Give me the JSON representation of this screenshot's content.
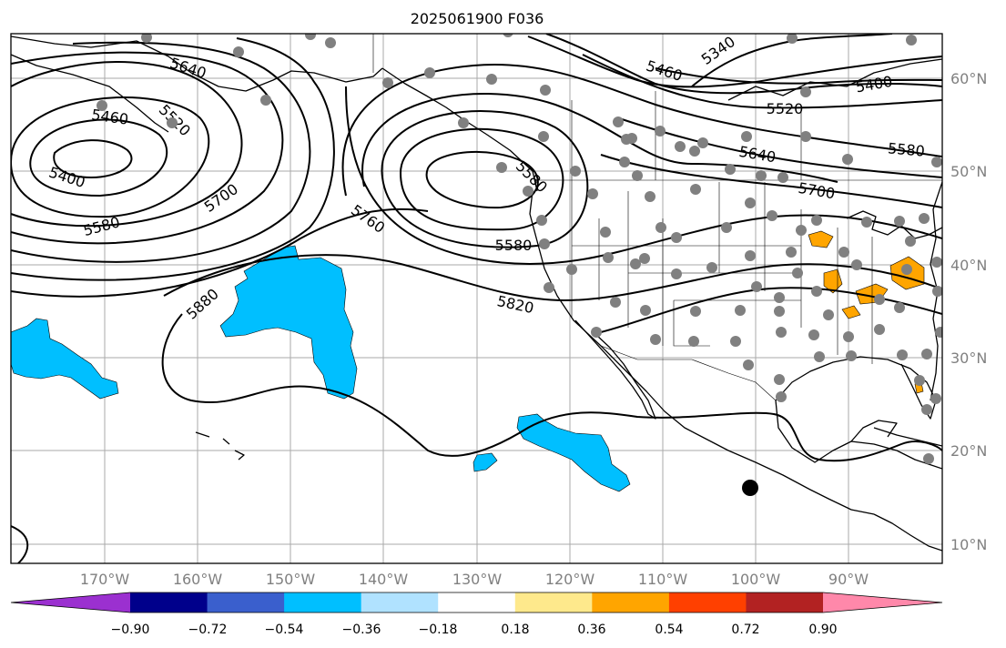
{
  "title": "2025061900 F036",
  "lat_labels": [
    "60°N",
    "50°N",
    "40°N",
    "30°N",
    "20°N",
    "10°N"
  ],
  "lon_labels": [
    "170°W",
    "160°W",
    "150°W",
    "140°W",
    "130°W",
    "120°W",
    "110°W",
    "100°W",
    "90°W"
  ],
  "contour_labels": [
    "5640",
    "5460",
    "5520",
    "5400",
    "5580",
    "5700",
    "5880",
    "5760",
    "5580",
    "5820",
    "5460",
    "5340",
    "5400",
    "5520",
    "5580",
    "5640",
    "5700",
    "5580"
  ],
  "colorbar": {
    "ticks": [
      "−0.90",
      "−0.72",
      "−0.54",
      "−0.36",
      "−0.18",
      "0.18",
      "0.36",
      "0.54",
      "0.72",
      "0.90"
    ],
    "colors": [
      "#9b30d0",
      "#00008b",
      "#3a5fcd",
      "#00bfff",
      "#b0e2ff",
      "#ffffff",
      "#fee98c",
      "#ffa500",
      "#ff4000",
      "#b22222",
      "#ff88aa"
    ]
  },
  "fill_colors": {
    "negative": "#00bfff",
    "positive": "#ffa500"
  },
  "station_color": "#808080"
}
